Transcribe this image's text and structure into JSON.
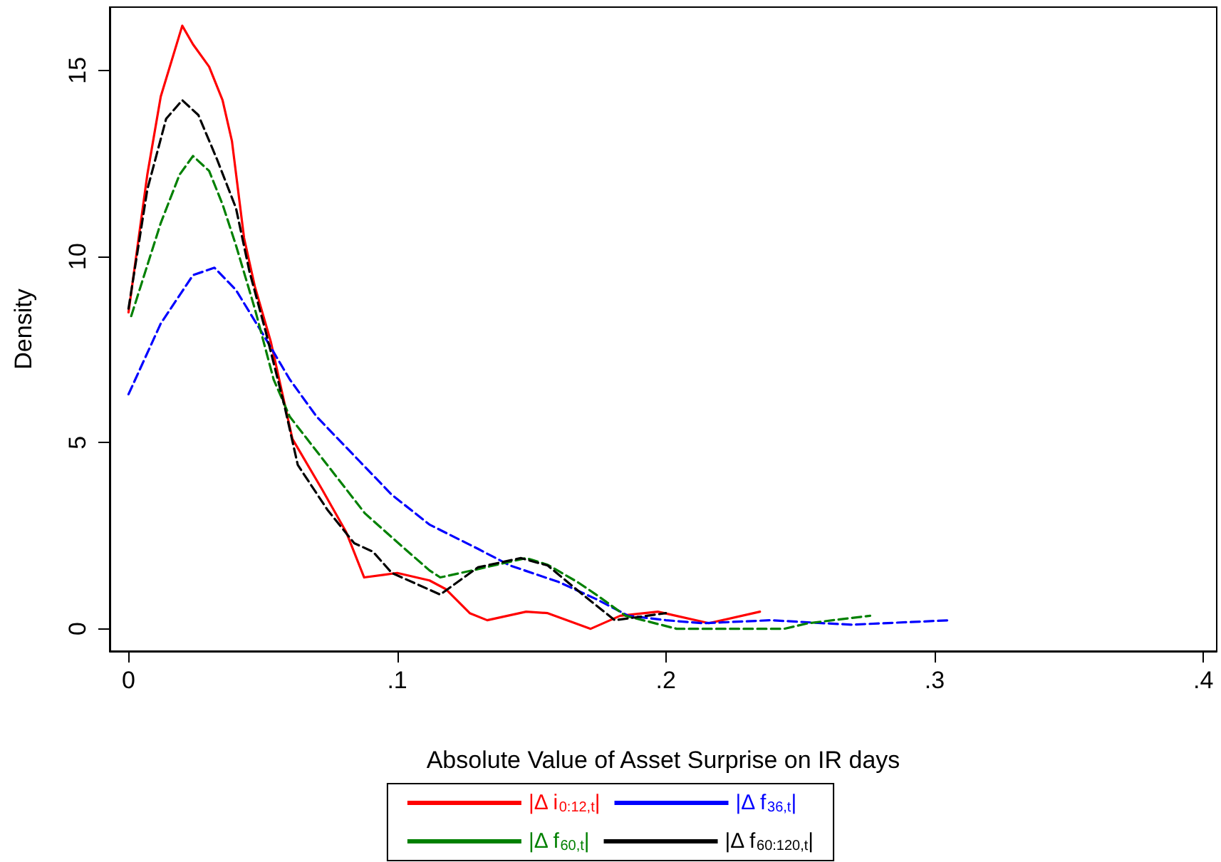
{
  "chart_data": {
    "type": "line",
    "xlabel": "Absolute Value of Asset Surprise on IR days",
    "ylabel": "Density",
    "xlim": [
      -0.007,
      0.405
    ],
    "ylim": [
      -0.6,
      16.7
    ],
    "xticks": [
      0,
      {
        "value": 0.1,
        "label": ".1"
      },
      {
        "value": 0.2,
        "label": ".2"
      },
      {
        "value": 0.3,
        "label": ".3"
      },
      {
        "value": 0.4,
        "label": ".4"
      }
    ],
    "yticks": [
      0,
      5,
      10,
      15
    ],
    "grid": false,
    "legend": "bottom",
    "marker": "none",
    "series": [
      {
        "name": "|Δ i$_{0:12,t}$|",
        "color": "#ff0000",
        "line_style": "solid",
        "x": [
          0,
          0.007,
          0.012,
          0.02,
          0.024,
          0.03,
          0.035,
          0.0385,
          0.043,
          0.047,
          0.053,
          0.061,
          0.072,
          0.081,
          0.0877,
          0.095,
          0.1,
          0.112,
          0.118,
          0.127,
          0.1335,
          0.148,
          0.156,
          0.172,
          0.183,
          0.197,
          0.216,
          0.235
        ],
        "values": [
          8.5,
          12.2,
          14.3,
          16.2,
          15.7,
          15.1,
          14.2,
          13.1,
          10.5,
          9.2,
          7.7,
          5.1,
          3.75,
          2.6,
          1.38,
          1.45,
          1.5,
          1.3,
          1.07,
          0.42,
          0.23,
          0.46,
          0.42,
          0,
          0.35,
          0.46,
          0.15,
          0.46
        ]
      },
      {
        "name": "|Δ f$_{36,t}$|",
        "color": "#0000ff",
        "line_style": "dashed",
        "x": [
          0,
          0.012,
          0.024,
          0.032,
          0.04,
          0.051,
          0.06,
          0.07,
          0.086,
          0.098,
          0.112,
          0.13,
          0.142,
          0.16,
          0.174,
          0.186,
          0.2,
          0.214,
          0.239,
          0.269,
          0.306
        ],
        "values": [
          6.3,
          8.2,
          9.5,
          9.7,
          9.1,
          7.8,
          6.7,
          5.7,
          4.5,
          3.6,
          2.8,
          2.15,
          1.7,
          1.26,
          0.8,
          0.35,
          0.23,
          0.15,
          0.23,
          0.11,
          0.23
        ]
      },
      {
        "name": "|Δ f$_{60,t}$|",
        "color": "#008000",
        "line_style": "dashed",
        "x": [
          0.001,
          0.012,
          0.019,
          0.024,
          0.03,
          0.035,
          0.04,
          0.047,
          0.054,
          0.06,
          0.074,
          0.088,
          0.102,
          0.112,
          0.116,
          0.128,
          0.148,
          0.156,
          0.167,
          0.174,
          0.185,
          0.204,
          0.244,
          0.253,
          0.276
        ],
        "values": [
          8.4,
          10.9,
          12.2,
          12.7,
          12.3,
          11.4,
          10.3,
          8.6,
          6.7,
          5.7,
          4.4,
          3.1,
          2.2,
          1.57,
          1.38,
          1.57,
          1.9,
          1.72,
          1.26,
          0.92,
          0.35,
          0,
          0,
          0.15,
          0.35
        ]
      },
      {
        "name": "|Δ f$_{60:120,t}$|",
        "color": "#000000",
        "line_style": "dashed",
        "x": [
          0,
          0.007,
          0.014,
          0.02,
          0.026,
          0.033,
          0.04,
          0.045,
          0.051,
          0.058,
          0.063,
          0.074,
          0.084,
          0.091,
          0.098,
          0.116,
          0.13,
          0.146,
          0.156,
          0.169,
          0.181,
          0.2
        ],
        "values": [
          8.6,
          11.8,
          13.7,
          14.2,
          13.8,
          12.6,
          11.3,
          9.6,
          8.0,
          6.0,
          4.4,
          3.2,
          2.3,
          2.07,
          1.5,
          0.92,
          1.65,
          1.9,
          1.7,
          0.92,
          0.23,
          0.42
        ]
      }
    ]
  }
}
